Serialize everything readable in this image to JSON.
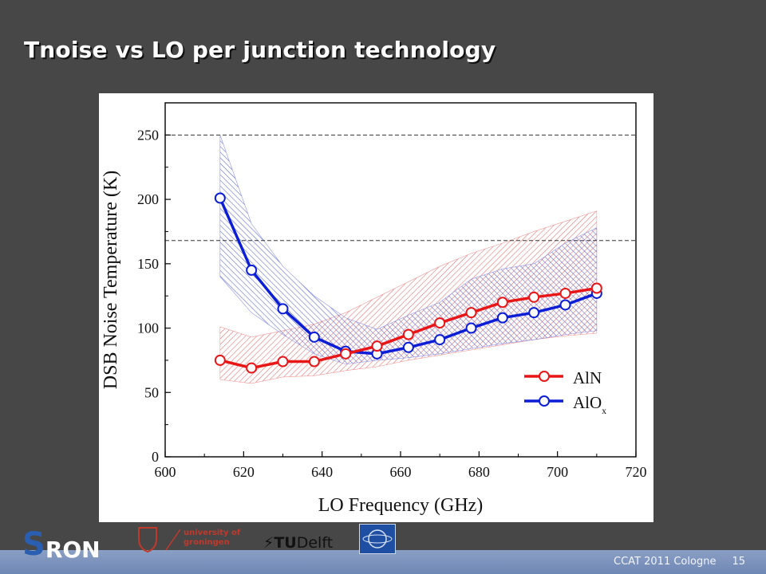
{
  "slide": {
    "title": "Tnoise vs LO per junction technology",
    "footer_event": "CCAT 2011 Cologne",
    "page_number": "15"
  },
  "logos": {
    "sron": "SRON",
    "groningen": "university of groningen",
    "tudelft": "TUDelft",
    "nova": "NOVA"
  },
  "colors": {
    "background": "#474747",
    "alo": "#0b1ed6",
    "aln": "#e81616",
    "footer": "#7a91bd"
  },
  "chart_data": {
    "type": "line",
    "xlabel": "LO Frequency (GHz)",
    "ylabel": "DSB Noise Temperature (K)",
    "xlim": [
      600,
      720
    ],
    "ylim": [
      0,
      275
    ],
    "xticks": [
      600,
      620,
      640,
      660,
      680,
      700,
      720
    ],
    "yticks": [
      0,
      50,
      100,
      150,
      200,
      250
    ],
    "reference_lines": [
      250,
      168
    ],
    "legend_position": "bottom-right",
    "series": [
      {
        "name": "AlN",
        "color": "#e81616",
        "x": [
          614,
          622,
          630,
          638,
          646,
          654,
          662,
          670,
          678,
          686,
          694,
          702,
          710
        ],
        "y": [
          75,
          69,
          74,
          74,
          80,
          86,
          95,
          104,
          112,
          120,
          124,
          127,
          131
        ],
        "band_upper": [
          101,
          93,
          98,
          103,
          112,
          124,
          136,
          148,
          158,
          166,
          175,
          183,
          191
        ],
        "band_lower": [
          60,
          57,
          62,
          63,
          67,
          70,
          75,
          79,
          83,
          87,
          91,
          94,
          96
        ]
      },
      {
        "name": "AlOx",
        "name_main": "AlO",
        "name_sub": "x",
        "color": "#0b1ed6",
        "x": [
          614,
          622,
          630,
          638,
          646,
          654,
          662,
          670,
          678,
          686,
          694,
          702,
          710
        ],
        "y": [
          201,
          145,
          115,
          93,
          82,
          80,
          85,
          91,
          100,
          108,
          112,
          118,
          127
        ],
        "band_upper": [
          250,
          181,
          148,
          125,
          108,
          99,
          110,
          120,
          138,
          146,
          150,
          166,
          178
        ],
        "band_lower": [
          140,
          112,
          95,
          80,
          72,
          75,
          77,
          80,
          84,
          88,
          91,
          95,
          98
        ]
      }
    ]
  }
}
